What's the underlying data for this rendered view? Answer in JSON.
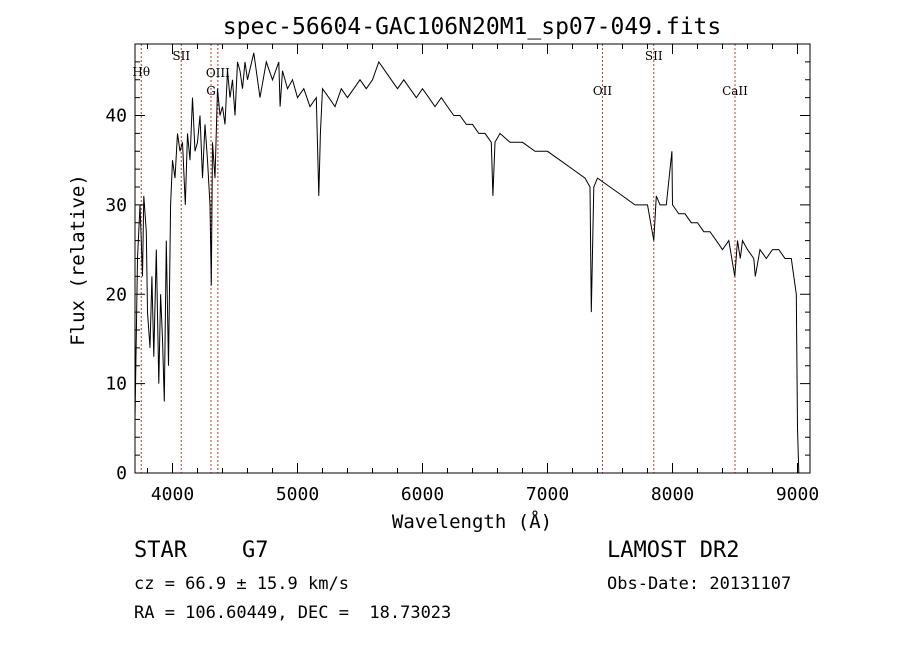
{
  "chart_data": {
    "type": "line",
    "title": "spec-56604-GAC106N20M1_sp07-049.fits",
    "xlabel": "Wavelength (Å)",
    "ylabel": "Flux (relative)",
    "xlim": [
      3700,
      9100
    ],
    "ylim": [
      0,
      48
    ],
    "xticks": [
      4000,
      5000,
      6000,
      7000,
      8000,
      9000
    ],
    "yticks": [
      0,
      10,
      20,
      30,
      40
    ],
    "series": [
      {
        "name": "flux",
        "x": [
          3700,
          3720,
          3740,
          3760,
          3770,
          3790,
          3800,
          3820,
          3835,
          3850,
          3870,
          3890,
          3905,
          3920,
          3934,
          3950,
          3968,
          3985,
          4000,
          4020,
          4040,
          4060,
          4080,
          4102,
          4120,
          4140,
          4160,
          4180,
          4200,
          4220,
          4240,
          4260,
          4280,
          4300,
          4310,
          4320,
          4340,
          4360,
          4380,
          4400,
          4420,
          4440,
          4460,
          4480,
          4500,
          4520,
          4540,
          4560,
          4580,
          4600,
          4650,
          4700,
          4750,
          4800,
          4850,
          4861,
          4880,
          4920,
          4960,
          5000,
          5050,
          5100,
          5150,
          5170,
          5183,
          5200,
          5250,
          5300,
          5350,
          5400,
          5450,
          5500,
          5550,
          5600,
          5650,
          5700,
          5750,
          5800,
          5850,
          5900,
          5950,
          6000,
          6050,
          6100,
          6150,
          6200,
          6250,
          6300,
          6350,
          6400,
          6450,
          6500,
          6550,
          6563,
          6580,
          6620,
          6700,
          6800,
          6900,
          7000,
          7100,
          7200,
          7300,
          7340,
          7350,
          7370,
          7400,
          7500,
          7600,
          7700,
          7800,
          7850,
          7870,
          7900,
          7950,
          7995,
          8000,
          8050,
          8100,
          8150,
          8200,
          8250,
          8300,
          8350,
          8400,
          8450,
          8498,
          8520,
          8542,
          8560,
          8600,
          8650,
          8662,
          8700,
          8750,
          8800,
          8850,
          8900,
          8950,
          8990,
          9000,
          9010
        ],
        "y": [
          6,
          24,
          30,
          22,
          31,
          27,
          18,
          14,
          22,
          13,
          25,
          10,
          20,
          15,
          8,
          26,
          12,
          30,
          35,
          33,
          38,
          36,
          37,
          30,
          38,
          35,
          42,
          36,
          37,
          40,
          33,
          39,
          35,
          30,
          21,
          37,
          33,
          43,
          40,
          41,
          39,
          45,
          42,
          44,
          40,
          46,
          45,
          43,
          46,
          44,
          47,
          42,
          46,
          44,
          46,
          41,
          45,
          43,
          44,
          42,
          43,
          41,
          42,
          31,
          38,
          43,
          42,
          41,
          43,
          42,
          43,
          44,
          43,
          44,
          46,
          45,
          44,
          43,
          44,
          43,
          42,
          43,
          42,
          41,
          42,
          41,
          40,
          40,
          39,
          39,
          38,
          38,
          37,
          31,
          37,
          38,
          37,
          37,
          36,
          36,
          35,
          34,
          33,
          32,
          18,
          32,
          33,
          32,
          31,
          30,
          30,
          26,
          31,
          30,
          30,
          36,
          30,
          29,
          29,
          28,
          28,
          27,
          27,
          26,
          25,
          26,
          22,
          26,
          24,
          26,
          25,
          24,
          22,
          25,
          24,
          25,
          25,
          24,
          24,
          20,
          5,
          0
        ]
      }
    ],
    "lines": [
      {
        "x": 3750,
        "label": "Hθ"
      },
      {
        "x": 4070,
        "label": "SII"
      },
      {
        "x": 4308,
        "label": "G"
      },
      {
        "x": 4363,
        "label": "OIII"
      },
      {
        "x": 7440,
        "label": "OII"
      },
      {
        "x": 7850,
        "label": "SII"
      },
      {
        "x": 8500,
        "label": "CaII"
      }
    ],
    "grid": false
  },
  "footer": {
    "object_class": "STAR",
    "subclass": "G7",
    "survey": "LAMOST DR2",
    "cz": "cz = 66.9 ± 15.9 km/s",
    "obs_date": "Obs-Date: 20131107",
    "coords": "RA = 106.60449, DEC =  18.73023"
  }
}
